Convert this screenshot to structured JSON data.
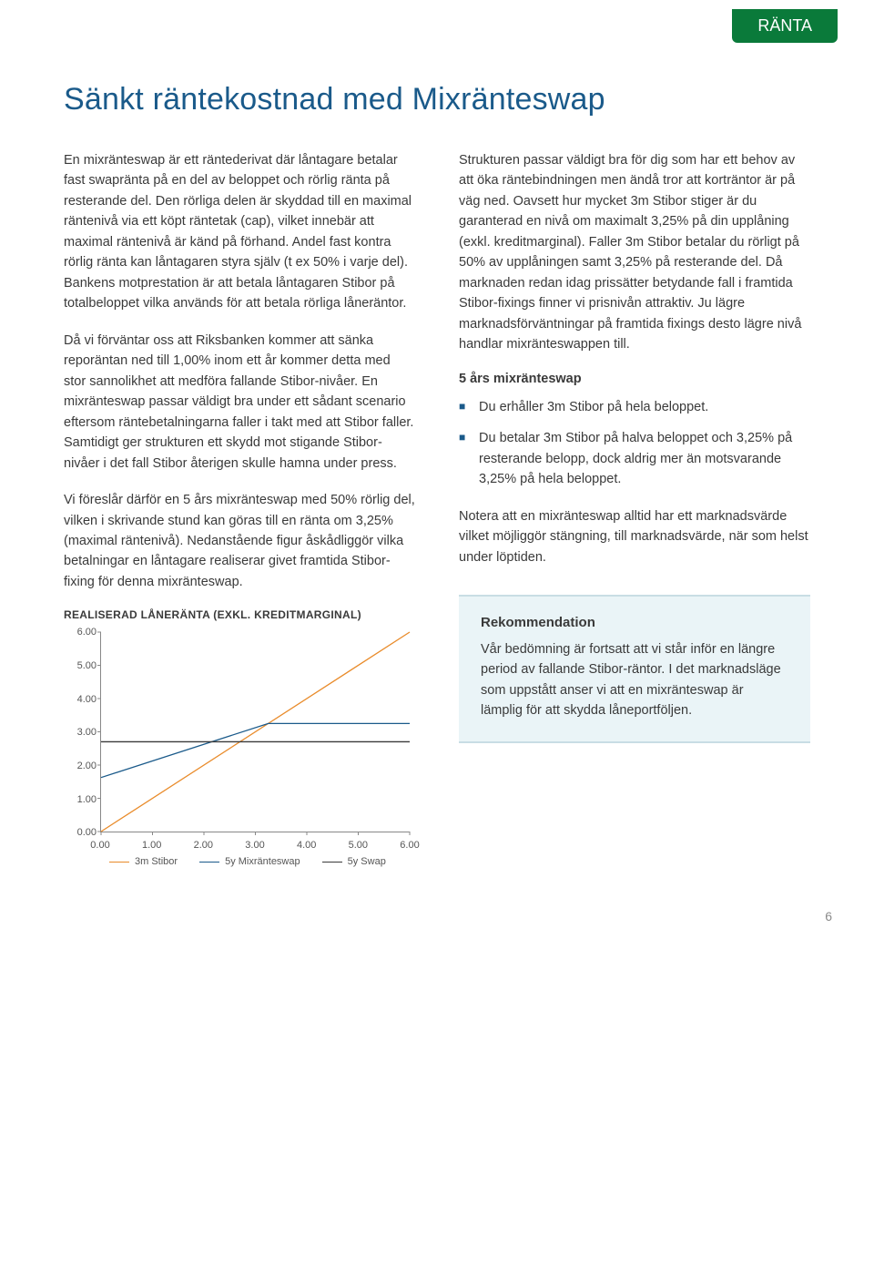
{
  "tab": "RÄNTA",
  "title": "Sänkt räntekostnad med Mixränteswap",
  "left": {
    "p1": "En mixränteswap är ett räntederivat där låntagare betalar fast swapränta på en del av beloppet och rörlig ränta på resterande del. Den rörliga delen är skyddad till en maximal räntenivå via ett köpt räntetak (cap), vilket innebär att maximal räntenivå är känd på förhand. Andel fast kontra rörlig ränta kan låntagaren styra själv (t ex 50% i varje del). Bankens motprestation är att betala låntagaren Stibor på totalbeloppet vilka används för att betala rörliga låneräntor.",
    "p2": "Då vi förväntar oss att Riksbanken kommer att sänka reporäntan ned till 1,00% inom ett år kommer detta med stor sannolikhet att medföra fallande Stibor-nivåer. En mixränteswap passar väldigt bra under ett sådant scenario eftersom räntebetalningarna faller i takt med att Stibor faller. Samtidigt ger strukturen ett skydd mot stigande Stibor-nivåer i det fall Stibor återigen skulle hamna under press.",
    "p3": "Vi föreslår därför en 5 års mixränteswap med 50% rörlig del, vilken i skrivande stund kan göras till en ränta om 3,25% (maximal räntenivå). Nedanstående figur åskådliggör vilka betalningar en låntagare realiserar givet framtida Stibor-fixing för denna mixränteswap."
  },
  "right": {
    "p1": "Strukturen passar väldigt bra för dig som har ett behov av att öka räntebindningen men ändå tror att korträntor är på väg ned. Oavsett hur mycket 3m Stibor stiger är du garanterad en nivå om maximalt 3,25% på din upplåning (exkl. kreditmarginal). Faller 3m Stibor betalar du rörligt på 50% av upplåningen samt 3,25% på resterande del. Då marknaden redan idag prissätter betydande fall i framtida Stibor-fixings finner vi prisnivån attraktiv. Ju lägre marknadsförväntningar på framtida fixings desto lägre nivå handlar mixränteswappen till.",
    "subhead": "5 års mixränteswap",
    "b1": "Du erhåller 3m Stibor på hela beloppet.",
    "b2": "Du betalar 3m Stibor på halva beloppet och 3,25% på resterande belopp, dock aldrig mer än motsvarande 3,25% på hela beloppet.",
    "p2": "Notera att en mixränteswap alltid har ett marknadsvärde vilket möjliggör stängning, till marknadsvärde, när som helst under löptiden."
  },
  "callout": {
    "heading": "Rekommendation",
    "body": "Vår bedömning är fortsatt att vi står inför en längre period av fallande Stibor-räntor. I det marknadsläge som uppstått anser vi att en mixränteswap är lämplig för att skydda låneportföljen."
  },
  "chart": {
    "title": "REALISERAD LÅNERÄNTA (EXKL. KREDITMARGINAL)",
    "type": "line",
    "xlim": [
      0,
      6
    ],
    "ylim": [
      0,
      6
    ],
    "xticks": [
      "0.00",
      "1.00",
      "2.00",
      "3.00",
      "4.00",
      "5.00",
      "6.00"
    ],
    "yticks": [
      "0.00",
      "1.00",
      "2.00",
      "3.00",
      "4.00",
      "5.00",
      "6.00"
    ],
    "background": "#ffffff",
    "axis_color": "#888888",
    "tick_fontsize": 11,
    "series": [
      {
        "name": "3m Stibor",
        "color": "#e98b2a",
        "width": 1.3,
        "points": [
          [
            0,
            0
          ],
          [
            6,
            6
          ]
        ]
      },
      {
        "name": "5y Mixränteswap",
        "color": "#1a5a8a",
        "width": 1.3,
        "points": [
          [
            0,
            1.625
          ],
          [
            3.25,
            3.25
          ],
          [
            6,
            3.25
          ]
        ]
      },
      {
        "name": "5y Swap",
        "color": "#3a3a3a",
        "width": 1.3,
        "points": [
          [
            0,
            2.7
          ],
          [
            6,
            2.7
          ]
        ]
      }
    ],
    "legend_position": "bottom"
  },
  "pagenum": "6"
}
